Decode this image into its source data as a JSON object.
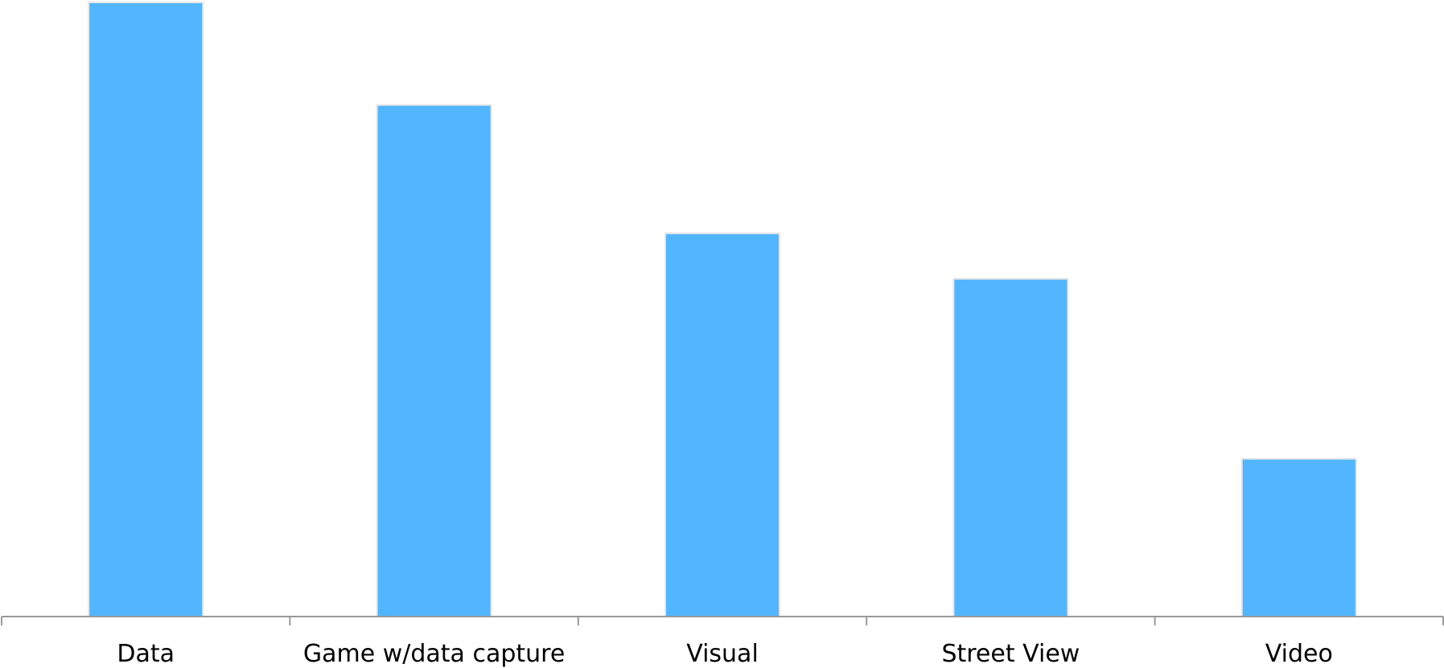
{
  "chart_data": {
    "type": "bar",
    "categories": [
      "Data",
      "Game w/data capture",
      "Visual",
      "Street View",
      "Video"
    ],
    "values": [
      100,
      83.3,
      62.4,
      55.0,
      25.7
    ],
    "title": "",
    "xlabel": "",
    "ylabel": "",
    "ylim": [
      0,
      100
    ],
    "grid": false,
    "legend": "none",
    "bar_color": "#52b5ff",
    "bar_edge_color": "#e6e6e6",
    "axis_color": "#999999"
  }
}
